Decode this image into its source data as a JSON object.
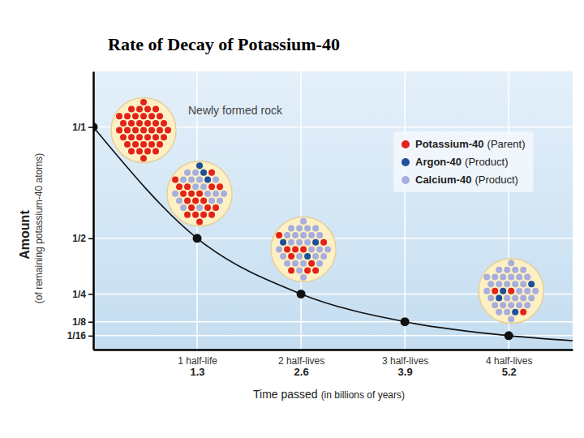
{
  "chart_data": {
    "type": "line",
    "title": "Rate of Decay of Potassium-40",
    "x_label": "Time passed",
    "x_label_note": "(in billions of years)",
    "y_label": "Amount",
    "y_label_note": "(of remaining potassium-40 atoms)",
    "xlim": [
      0,
      6
    ],
    "xticks": [
      1.3,
      2.6,
      3.9,
      5.2
    ],
    "half_life_labels": [
      "1 half-life",
      "2 half-lives",
      "3 half-lives",
      "4 half-lives"
    ],
    "ylim": [
      0,
      1.25
    ],
    "yticks": [
      {
        "value": 1,
        "label": "1/1"
      },
      {
        "value": 0.5,
        "label": "1/2"
      },
      {
        "value": 0.25,
        "label": "1/4"
      },
      {
        "value": 0.125,
        "label": "1/8"
      },
      {
        "value": 0.0625,
        "label": "1/16"
      }
    ],
    "grid": true,
    "legend": "upper right",
    "series": [
      {
        "type": "line",
        "line_style": "solid",
        "color": "#111111",
        "x": [
          0,
          1.3,
          2.6,
          3.9,
          5.2,
          6
        ],
        "values": [
          1,
          0.5,
          0.25,
          0.125,
          0.0625,
          0.04
        ]
      },
      {
        "type": "scatter",
        "marker": "circle",
        "color": "#111111",
        "x": [
          0,
          1.3,
          2.6,
          3.9,
          5.2
        ],
        "values": [
          1,
          0.5,
          0.25,
          0.125,
          0.0625
        ]
      }
    ],
    "atoms": [
      {
        "name": "Potassium-40",
        "note": "(Parent)",
        "color": "#e2231a"
      },
      {
        "name": "Argon-40",
        "note": "(Product)",
        "color": "#1d4f9c"
      },
      {
        "name": "Calcium-40",
        "note": "(Product)",
        "color": "#a7aede"
      }
    ],
    "samples": [
      {
        "label": "Newly formed rock",
        "x": 0,
        "counts": [
          40,
          0,
          0
        ]
      },
      {
        "x": 1.3,
        "counts": [
          20,
          3,
          17
        ]
      },
      {
        "x": 2.6,
        "counts": [
          10,
          3,
          27
        ]
      },
      {
        "x": 5.2,
        "counts": [
          3,
          4,
          33
        ]
      }
    ]
  }
}
